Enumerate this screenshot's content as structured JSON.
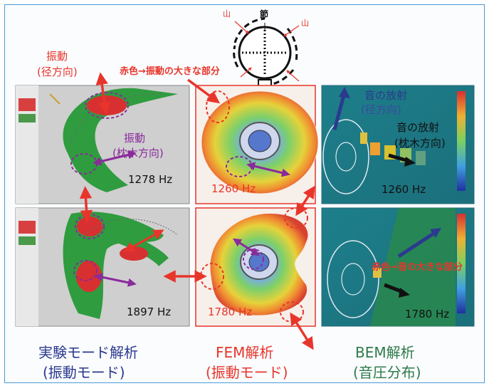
{
  "node_diagram": {
    "node_label": "節",
    "antinode_label": "山"
  },
  "annotations": {
    "vibration_radial": [
      "振動",
      "(径方向)"
    ],
    "red_large_vibration": "赤色→振動の大きな部分",
    "vibration_sleeper": [
      "振動",
      "(枕木方向)"
    ],
    "sound_radial": [
      "音の放射",
      "(径方向)"
    ],
    "sound_sleeper": [
      "音の放射",
      "(枕木方向)"
    ],
    "red_large_sound": "赤色→音の大きな部分"
  },
  "frequencies": {
    "exp_top": "1278 Hz",
    "exp_bottom": "1897 Hz",
    "fem_top": "1260 Hz",
    "fem_bottom": "1780 Hz",
    "bem_top": "1260 Hz",
    "bem_bottom": "1780 Hz"
  },
  "columns": [
    {
      "title": "実験モード解析",
      "subtitle": "(振動モード)",
      "color": "#2b3a8e"
    },
    {
      "title": "FEM解析",
      "subtitle": "(振動モード)",
      "color": "#e8352b"
    },
    {
      "title": "BEM解析",
      "subtitle": "(音圧分布)",
      "color": "#2e7a4a"
    }
  ],
  "colors": {
    "accent_red": "#e8352b",
    "accent_blue": "#2b3a8e",
    "accent_purple": "#8b2a9c",
    "frame_blue": "#4a9ad6"
  }
}
